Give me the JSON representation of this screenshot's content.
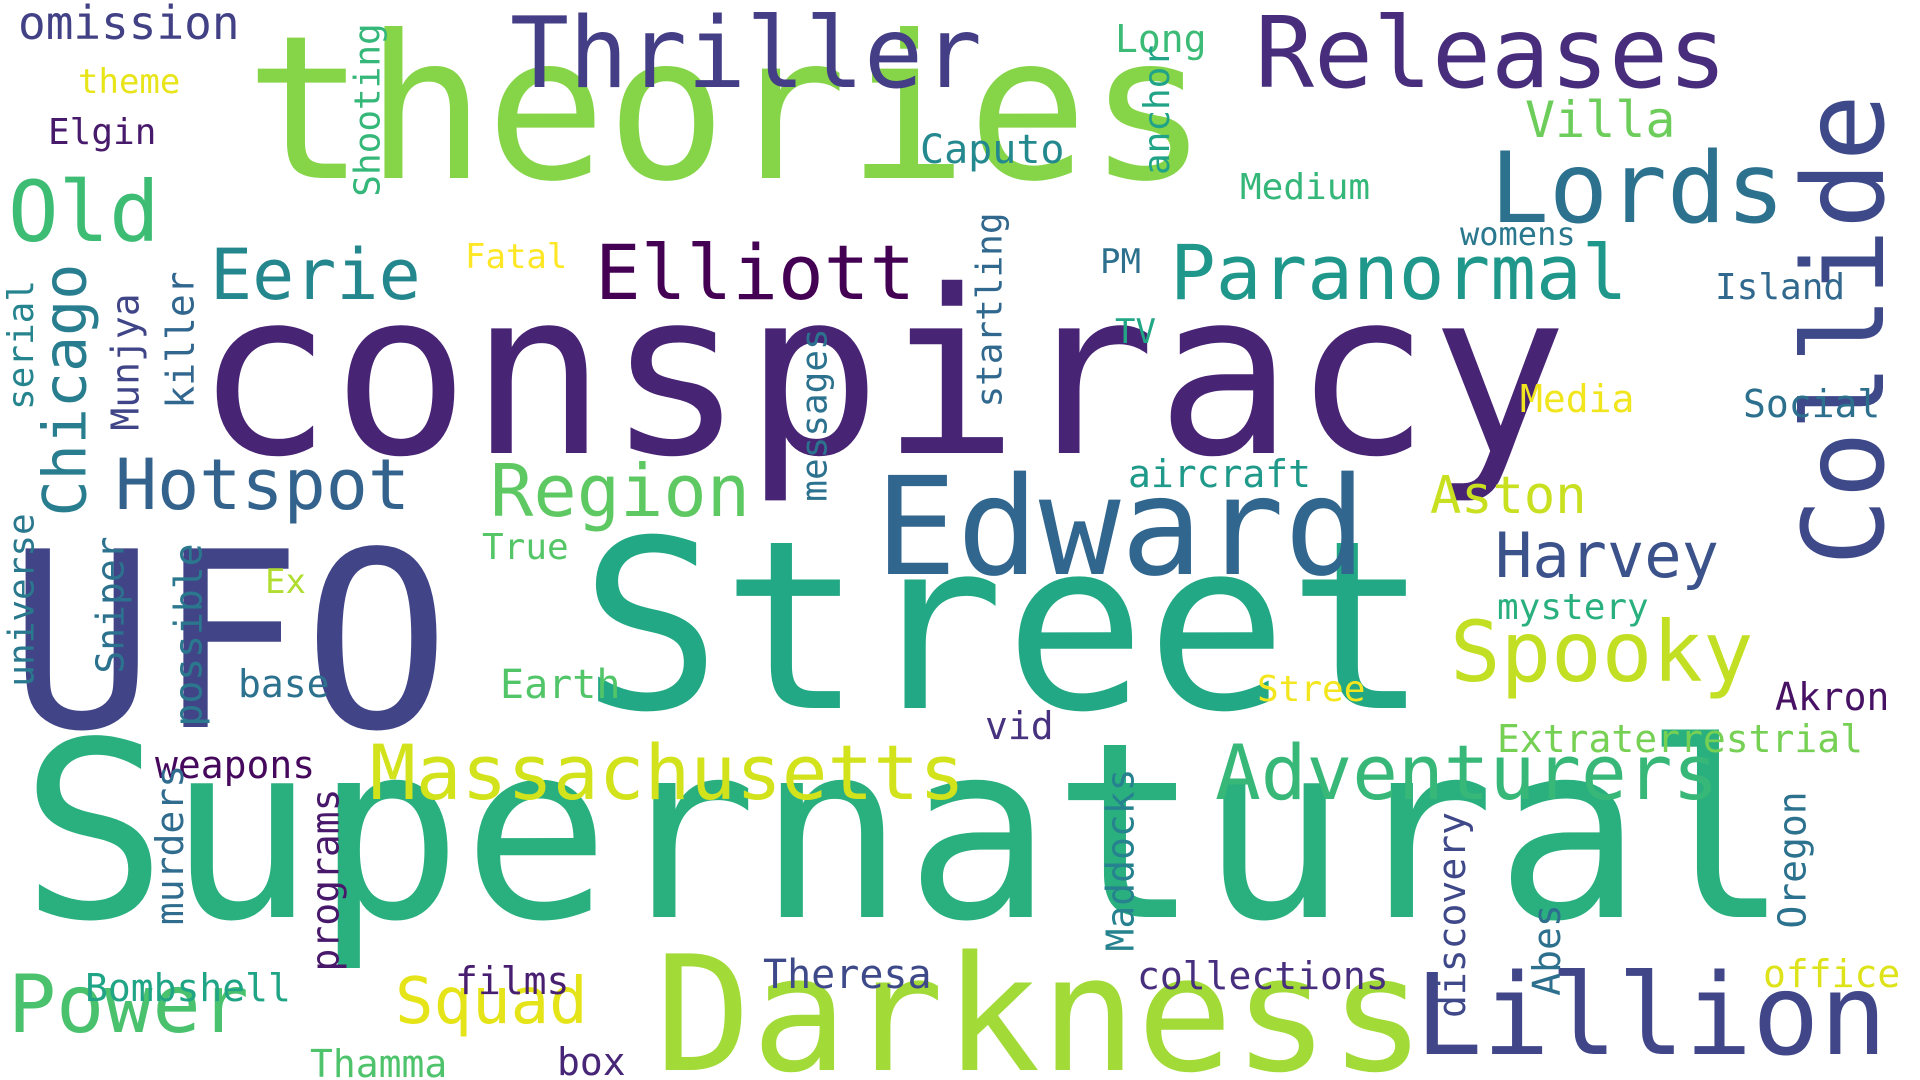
{
  "words": [
    {
      "key": "conspiracy",
      "text": "conspiracy",
      "color": "#482475"
    },
    {
      "key": "ufo",
      "text": "UFO",
      "color": "#414487"
    },
    {
      "key": "street",
      "text": "Street",
      "color": "#22a884"
    },
    {
      "key": "supernatural",
      "text": "Supernatural",
      "color": "#2ab07f"
    },
    {
      "key": "theories",
      "text": "theories",
      "color": "#86d549"
    },
    {
      "key": "darkness",
      "text": "Darkness",
      "color": "#a2da37"
    },
    {
      "key": "collide",
      "text": "Collide",
      "color": "#3e4989"
    },
    {
      "key": "thriller",
      "text": "Thriller",
      "color": "#433e85"
    },
    {
      "key": "releases",
      "text": "Releases",
      "color": "#472d7b"
    },
    {
      "key": "lords",
      "text": "Lords",
      "color": "#2c728e"
    },
    {
      "key": "edward",
      "text": "Edward",
      "color": "#31668e"
    },
    {
      "key": "lillion",
      "text": "Lillion",
      "color": "#404688"
    },
    {
      "key": "massachusetts",
      "text": "Massachusetts",
      "color": "#d2e21b"
    },
    {
      "key": "adventurers",
      "text": "Adventurers",
      "color": "#37b878"
    },
    {
      "key": "spooky",
      "text": "Spooky",
      "color": "#c2df23"
    },
    {
      "key": "paranormal",
      "text": "Paranormal",
      "color": "#1f988b"
    },
    {
      "key": "elliott",
      "text": "Elliott",
      "color": "#440154"
    },
    {
      "key": "old",
      "text": "Old",
      "color": "#3dbc74"
    },
    {
      "key": "eerie",
      "text": "Eerie",
      "color": "#24878e"
    },
    {
      "key": "hotspot",
      "text": "Hotspot",
      "color": "#33638d"
    },
    {
      "key": "region",
      "text": "Region",
      "color": "#5ec962"
    },
    {
      "key": "power",
      "text": "Power",
      "color": "#4ac16d"
    },
    {
      "key": "squad",
      "text": "Squad",
      "color": "#e5e419"
    },
    {
      "key": "harvey",
      "text": "Harvey",
      "color": "#3b528b"
    },
    {
      "key": "aston",
      "text": "Aston",
      "color": "#c8e020"
    },
    {
      "key": "villa",
      "text": "Villa",
      "color": "#6ccd5a"
    },
    {
      "key": "chicago",
      "text": "Chicago",
      "color": "#287d8e"
    },
    {
      "key": "omission",
      "text": "omission",
      "color": "#424186"
    },
    {
      "key": "theme",
      "text": "theme",
      "color": "#e7e419"
    },
    {
      "key": "elgin",
      "text": "Elgin",
      "color": "#481a6c"
    },
    {
      "key": "shooting",
      "text": "Shooting",
      "color": "#35b779"
    },
    {
      "key": "long",
      "text": "Long",
      "color": "#3bbb75"
    },
    {
      "key": "anchor",
      "text": "anchor",
      "color": "#20a386"
    },
    {
      "key": "caputo",
      "text": "Caputo",
      "color": "#23898e"
    },
    {
      "key": "medium",
      "text": "Medium",
      "color": "#35b779"
    },
    {
      "key": "womens",
      "text": "womens",
      "color": "#2a788e"
    },
    {
      "key": "island",
      "text": "Island",
      "color": "#31688e"
    },
    {
      "key": "fatal",
      "text": "Fatal",
      "color": "#fde725"
    },
    {
      "key": "pm",
      "text": "PM",
      "color": "#2d708e"
    },
    {
      "key": "tv",
      "text": "TV",
      "color": "#22a785"
    },
    {
      "key": "startling",
      "text": "startling",
      "color": "#31688e"
    },
    {
      "key": "media",
      "text": "Media",
      "color": "#f1e51d"
    },
    {
      "key": "social",
      "text": "Social",
      "color": "#2d708e"
    },
    {
      "key": "aircraft",
      "text": "aircraft",
      "color": "#1f9a8a"
    },
    {
      "key": "messages",
      "text": "messages",
      "color": "#2c728e"
    },
    {
      "key": "serial",
      "text": "serial",
      "color": "#25848e"
    },
    {
      "key": "munjya",
      "text": "Munjya",
      "color": "#404588"
    },
    {
      "key": "killer",
      "text": "killer",
      "color": "#31678e"
    },
    {
      "key": "universe",
      "text": "universe",
      "color": "#2a788e"
    },
    {
      "key": "sniper",
      "text": "Sniper",
      "color": "#2c718e"
    },
    {
      "key": "possible",
      "text": "possible",
      "color": "#2a778e"
    },
    {
      "key": "true",
      "text": "True",
      "color": "#55c667"
    },
    {
      "key": "ex",
      "text": "Ex",
      "color": "#b0dd2f"
    },
    {
      "key": "base",
      "text": "base",
      "color": "#2c718e"
    },
    {
      "key": "earth",
      "text": "Earth",
      "color": "#52c569"
    },
    {
      "key": "mystery",
      "text": "mystery",
      "color": "#2ab07f"
    },
    {
      "key": "stree",
      "text": "Stree",
      "color": "#f4e61e"
    },
    {
      "key": "akron",
      "text": "Akron",
      "color": "#471164"
    },
    {
      "key": "extraterrestrial",
      "text": "Extraterrestrial",
      "color": "#75d054"
    },
    {
      "key": "vid",
      "text": "vid",
      "color": "#46327e"
    },
    {
      "key": "weapons",
      "text": "weapons",
      "color": "#46085c"
    },
    {
      "key": "murders",
      "text": "murders",
      "color": "#2f6c8e"
    },
    {
      "key": "programs",
      "text": "programs",
      "color": "#48186a"
    },
    {
      "key": "maddocks",
      "text": "Maddocks",
      "color": "#26828e"
    },
    {
      "key": "discovery",
      "text": "discovery",
      "color": "#3f4889"
    },
    {
      "key": "abes",
      "text": "Abes",
      "color": "#2d708e"
    },
    {
      "key": "oregon",
      "text": "Oregon",
      "color": "#2c728e"
    },
    {
      "key": "office",
      "text": "office",
      "color": "#dde318"
    },
    {
      "key": "bombshell",
      "text": "Bombshell",
      "color": "#20a486"
    },
    {
      "key": "thamma",
      "text": "Thamma",
      "color": "#4ec36b"
    },
    {
      "key": "films",
      "text": "films",
      "color": "#481f70"
    },
    {
      "key": "box",
      "text": "box",
      "color": "#482677"
    },
    {
      "key": "theresa",
      "text": "Theresa",
      "color": "#3e4989"
    },
    {
      "key": "collections",
      "text": "collections",
      "color": "#472f7d"
    }
  ]
}
